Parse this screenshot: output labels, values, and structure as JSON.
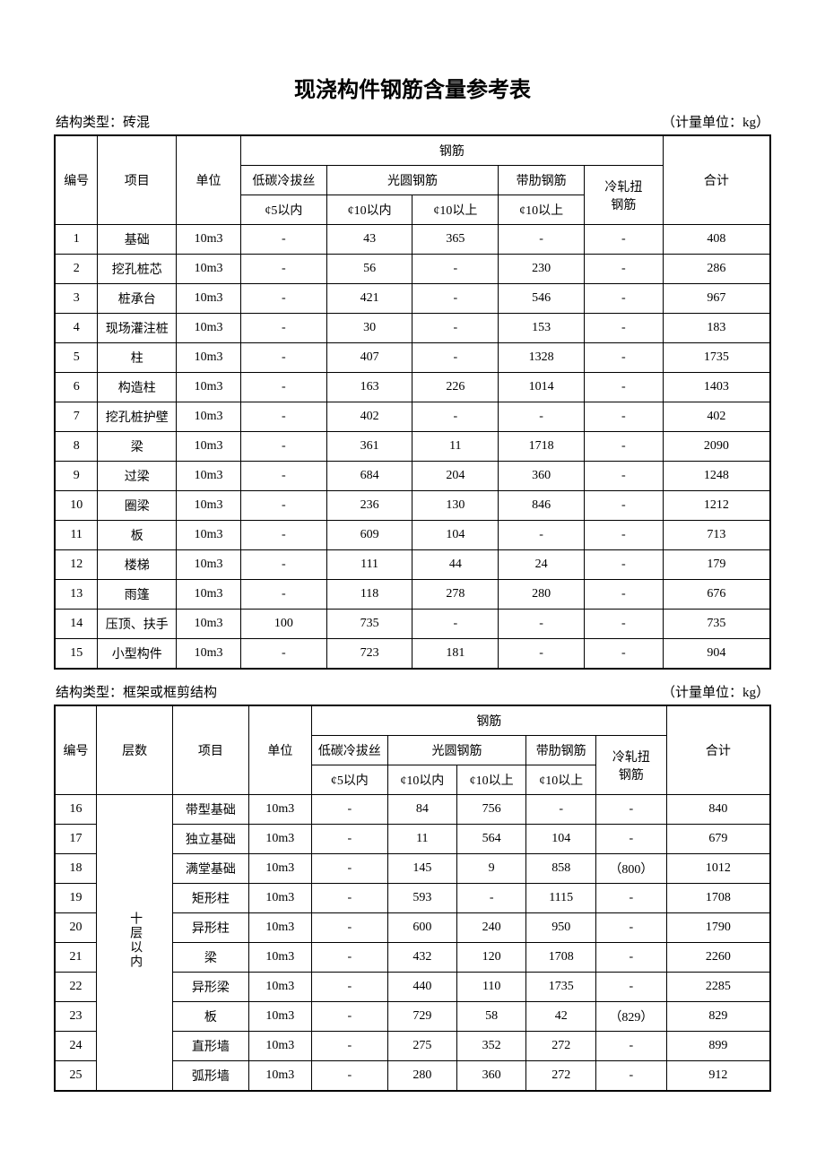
{
  "title": "现浇构件钢筋含量参考表",
  "unit_label_prefix": "（计量单位：",
  "unit_label_suffix": "）",
  "unit": "kg",
  "table1": {
    "structure_label": "结构类型：",
    "structure_type": "砖混",
    "headers": {
      "no": "编号",
      "item": "项目",
      "unit": "单位",
      "rebar": "钢筋",
      "lowcarbon": "低碳冷拔丝",
      "plain": "光圆钢筋",
      "ribbed": "带肋钢筋",
      "coldtwist1": "冷轧扭",
      "coldtwist2": "钢筋",
      "total": "合计",
      "phi5": "¢5以内",
      "phi10in": "¢10以内",
      "phi10up": "¢10以上",
      "phi10up2": "¢10以上"
    },
    "rows": [
      {
        "no": "1",
        "item": "基础",
        "unit": "10m3",
        "c1": "-",
        "c2": "43",
        "c3": "365",
        "c4": "-",
        "c5": "-",
        "total": "408"
      },
      {
        "no": "2",
        "item": "挖孔桩芯",
        "unit": "10m3",
        "c1": "-",
        "c2": "56",
        "c3": "-",
        "c4": "230",
        "c5": "-",
        "total": "286"
      },
      {
        "no": "3",
        "item": "桩承台",
        "unit": "10m3",
        "c1": "-",
        "c2": "421",
        "c3": "-",
        "c4": "546",
        "c5": "-",
        "total": "967"
      },
      {
        "no": "4",
        "item": "现场灌注桩",
        "unit": "10m3",
        "c1": "-",
        "c2": "30",
        "c3": "-",
        "c4": "153",
        "c5": "-",
        "total": "183"
      },
      {
        "no": "5",
        "item": "柱",
        "unit": "10m3",
        "c1": "-",
        "c2": "407",
        "c3": "-",
        "c4": "1328",
        "c5": "-",
        "total": "1735"
      },
      {
        "no": "6",
        "item": "构造柱",
        "unit": "10m3",
        "c1": "-",
        "c2": "163",
        "c3": "226",
        "c4": "1014",
        "c5": "-",
        "total": "1403"
      },
      {
        "no": "7",
        "item": "挖孔桩护壁",
        "unit": "10m3",
        "c1": "-",
        "c2": "402",
        "c3": "-",
        "c4": "-",
        "c5": "-",
        "total": "402"
      },
      {
        "no": "8",
        "item": "梁",
        "unit": "10m3",
        "c1": "-",
        "c2": "361",
        "c3": "11",
        "c4": "1718",
        "c5": "-",
        "total": "2090"
      },
      {
        "no": "9",
        "item": "过梁",
        "unit": "10m3",
        "c1": "-",
        "c2": "684",
        "c3": "204",
        "c4": "360",
        "c5": "-",
        "total": "1248"
      },
      {
        "no": "10",
        "item": "圈梁",
        "unit": "10m3",
        "c1": "-",
        "c2": "236",
        "c3": "130",
        "c4": "846",
        "c5": "-",
        "total": "1212"
      },
      {
        "no": "11",
        "item": "板",
        "unit": "10m3",
        "c1": "-",
        "c2": "609",
        "c3": "104",
        "c4": "-",
        "c5": "-",
        "total": "713"
      },
      {
        "no": "12",
        "item": "楼梯",
        "unit": "10m3",
        "c1": "-",
        "c2": "111",
        "c3": "44",
        "c4": "24",
        "c5": "-",
        "total": "179"
      },
      {
        "no": "13",
        "item": "雨篷",
        "unit": "10m3",
        "c1": "-",
        "c2": "118",
        "c3": "278",
        "c4": "280",
        "c5": "-",
        "total": "676"
      },
      {
        "no": "14",
        "item": "压顶、扶手",
        "unit": "10m3",
        "c1": "100",
        "c2": "735",
        "c3": "-",
        "c4": "-",
        "c5": "-",
        "total": "735"
      },
      {
        "no": "15",
        "item": "小型构件",
        "unit": "10m3",
        "c1": "-",
        "c2": "723",
        "c3": "181",
        "c4": "-",
        "c5": "-",
        "total": "904"
      }
    ]
  },
  "table2": {
    "structure_label": "结构类型：",
    "structure_type": "框架或框剪结构",
    "headers": {
      "no": "编号",
      "floor": "层数",
      "item": "项目",
      "unit": "单位",
      "rebar": "钢筋",
      "lowcarbon": "低碳冷拔丝",
      "plain": "光圆钢筋",
      "ribbed": "带肋钢筋",
      "coldtwist1": "冷轧扭",
      "coldtwist2": "钢筋",
      "total": "合计",
      "phi5": "¢5以内",
      "phi10in": "¢10以内",
      "phi10up": "¢10以上",
      "phi10up2": "¢10以上"
    },
    "floor_group": "十层以内",
    "rows": [
      {
        "no": "16",
        "item": "带型基础",
        "unit": "10m3",
        "c1": "-",
        "c2": "84",
        "c3": "756",
        "c4": "-",
        "c5": "-",
        "total": "840"
      },
      {
        "no": "17",
        "item": "独立基础",
        "unit": "10m3",
        "c1": "-",
        "c2": "11",
        "c3": "564",
        "c4": "104",
        "c5": "-",
        "total": "679"
      },
      {
        "no": "18",
        "item": "满堂基础",
        "unit": "10m3",
        "c1": "-",
        "c2": "145",
        "c3": "9",
        "c4": "858",
        "c5": "（800）",
        "total": "1012"
      },
      {
        "no": "19",
        "item": "矩形柱",
        "unit": "10m3",
        "c1": "-",
        "c2": "593",
        "c3": "-",
        "c4": "1115",
        "c5": "-",
        "total": "1708"
      },
      {
        "no": "20",
        "item": "异形柱",
        "unit": "10m3",
        "c1": "-",
        "c2": "600",
        "c3": "240",
        "c4": "950",
        "c5": "-",
        "total": "1790"
      },
      {
        "no": "21",
        "item": "梁",
        "unit": "10m3",
        "c1": "-",
        "c2": "432",
        "c3": "120",
        "c4": "1708",
        "c5": "-",
        "total": "2260"
      },
      {
        "no": "22",
        "item": "异形梁",
        "unit": "10m3",
        "c1": "-",
        "c2": "440",
        "c3": "110",
        "c4": "1735",
        "c5": "-",
        "total": "2285"
      },
      {
        "no": "23",
        "item": "板",
        "unit": "10m3",
        "c1": "-",
        "c2": "729",
        "c3": "58",
        "c4": "42",
        "c5": "（829）",
        "total": "829"
      },
      {
        "no": "24",
        "item": "直形墙",
        "unit": "10m3",
        "c1": "-",
        "c2": "275",
        "c3": "352",
        "c4": "272",
        "c5": "-",
        "total": "899"
      },
      {
        "no": "25",
        "item": "弧形墙",
        "unit": "10m3",
        "c1": "-",
        "c2": "280",
        "c3": "360",
        "c4": "272",
        "c5": "-",
        "total": "912"
      }
    ]
  }
}
